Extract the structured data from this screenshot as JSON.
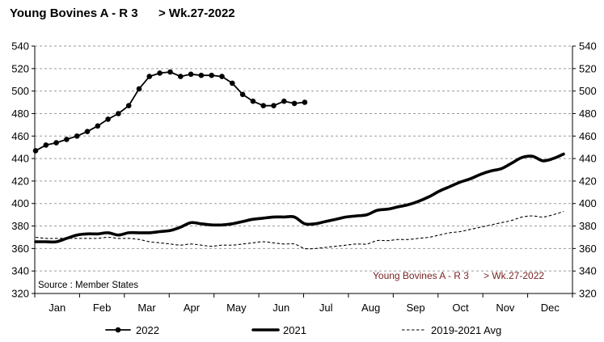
{
  "chart_data": {
    "type": "line",
    "title": "Young Bovines A - R 3",
    "title_suffix": "> Wk.27-2022",
    "x_tick_labels": [
      "Jan",
      "Feb",
      "Mar",
      "Apr",
      "May",
      "Jun",
      "Jul",
      "Aug",
      "Sep",
      "Oct",
      "Nov",
      "Dec"
    ],
    "ylim": [
      320,
      540
    ],
    "y_ticks": [
      320,
      340,
      360,
      380,
      400,
      420,
      440,
      460,
      480,
      500,
      520,
      540
    ],
    "grid": true,
    "legend_position": "bottom",
    "annotations": [
      {
        "text": "Source : Member States"
      },
      {
        "text": "Young Bovines A - R 3",
        "suffix": "> Wk.27-2022",
        "color": "#7a2424"
      }
    ],
    "series": [
      {
        "name": "2022",
        "color": "#000000",
        "markers": true,
        "dashed": false,
        "values": [
          447,
          452,
          454,
          457,
          460,
          464,
          469,
          475,
          480,
          487,
          502,
          513,
          516,
          517,
          513,
          515,
          514,
          514,
          513,
          507,
          497,
          491,
          487,
          487,
          491,
          489,
          490
        ]
      },
      {
        "name": "2021",
        "color": "#000000",
        "markers": false,
        "dashed": false,
        "values": [
          366,
          366,
          366,
          369,
          372,
          373,
          373,
          374,
          372,
          374,
          374,
          374,
          375,
          376,
          379,
          383,
          382,
          381,
          381,
          382,
          384,
          386,
          387,
          388,
          388,
          388,
          382,
          382,
          384,
          386,
          388,
          389,
          390,
          394,
          395,
          397,
          399,
          402,
          406,
          411,
          415,
          419,
          422,
          426,
          429,
          431,
          436,
          441,
          442,
          438,
          440,
          444
        ]
      },
      {
        "name": "2019-2021 Avg",
        "color": "#000000",
        "markers": false,
        "dashed": true,
        "values": [
          370,
          369,
          369,
          369,
          369,
          369,
          369,
          370,
          369,
          369,
          368,
          366,
          365,
          364,
          363,
          364,
          363,
          362,
          363,
          363,
          364,
          365,
          366,
          365,
          364,
          364,
          360,
          360,
          361,
          362,
          363,
          364,
          364,
          367,
          367,
          368,
          368,
          369,
          370,
          372,
          374,
          375,
          377,
          379,
          381,
          383,
          385,
          388,
          389,
          388,
          390,
          393
        ]
      }
    ]
  }
}
